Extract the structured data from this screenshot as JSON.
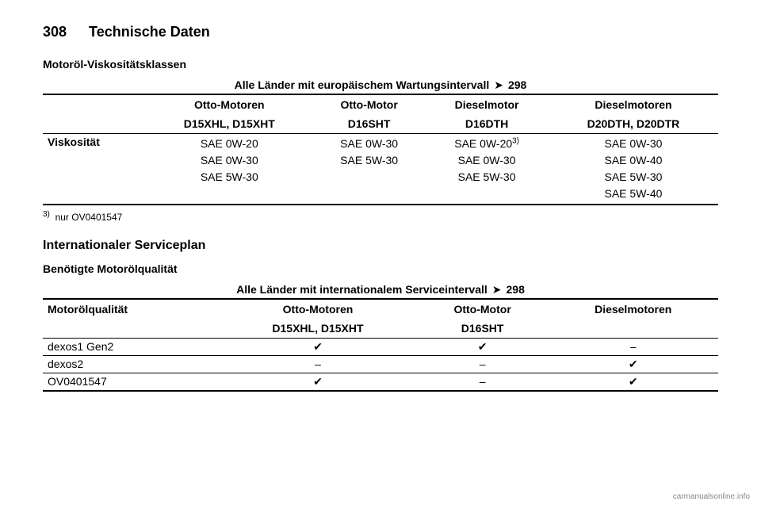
{
  "header": {
    "page_number": "308",
    "chapter": "Technische Daten"
  },
  "section1": {
    "title": "Motoröl-Viskositätsklassen",
    "caption_prefix": "Alle Länder mit europäischem Wartungsintervall",
    "caption_ref": "298",
    "arrow_char": "➤",
    "columns": [
      {
        "top": "",
        "sub": ""
      },
      {
        "top": "Otto-Motoren",
        "sub": "D15XHL, D15XHT"
      },
      {
        "top": "Otto-Motor",
        "sub": "D16SHT"
      },
      {
        "top": "Dieselmotor",
        "sub": "D16DTH"
      },
      {
        "top": "Dieselmotoren",
        "sub": "D20DTH, D20DTR"
      }
    ],
    "row_label": "Viskosität",
    "cells": [
      [
        "SAE 0W-20",
        "SAE 0W-30",
        "SAE 5W-30"
      ],
      [
        "SAE 0W-30",
        "SAE 5W-30"
      ],
      [
        "SAE 0W-20",
        "SAE 0W-30",
        "SAE 5W-30"
      ],
      [
        "SAE 0W-30",
        "SAE 0W-40",
        "SAE 5W-30",
        "SAE 5W-40"
      ]
    ],
    "footnote_marker": "3)",
    "footnote_text": "nur OV0401547",
    "sup_marker_on_cell": {
      "col": 2,
      "row": 0,
      "marker": "3)"
    }
  },
  "section2": {
    "heading": "Internationaler Serviceplan",
    "title": "Benötigte Motorölqualität",
    "caption_prefix": "Alle Länder mit internationalem Serviceintervall",
    "caption_ref": "298",
    "arrow_char": "➤",
    "columns": [
      {
        "top": "Motorölqualität",
        "sub": ""
      },
      {
        "top": "Otto-Motoren",
        "sub": "D15XHL, D15XHT"
      },
      {
        "top": "Otto-Motor",
        "sub": "D16SHT"
      },
      {
        "top": "Dieselmotoren",
        "sub": ""
      }
    ],
    "rows": [
      {
        "label": "dexos1 Gen2",
        "values": [
          "✔",
          "✔",
          "–"
        ]
      },
      {
        "label": "dexos2",
        "values": [
          "–",
          "–",
          "✔"
        ]
      },
      {
        "label": "OV0401547",
        "values": [
          "✔",
          "–",
          "✔"
        ]
      }
    ]
  },
  "watermark": "carmanualsonline.info",
  "colors": {
    "text": "#000000",
    "bg": "#ffffff",
    "watermark": "#888888"
  }
}
